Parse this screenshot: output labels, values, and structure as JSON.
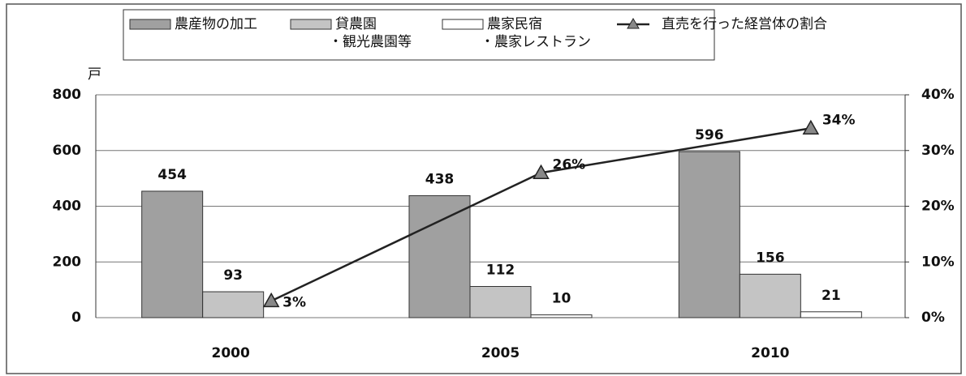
{
  "chart_data": {
    "type": "bar",
    "y_axis_label": "戸",
    "categories": [
      "2000",
      "2005",
      "2010"
    ],
    "series": [
      {
        "name": [
          "農産物の加工"
        ],
        "color": "#a0a0a0",
        "values": [
          454,
          438,
          596
        ]
      },
      {
        "name": [
          "貸農園",
          "・観光農園等"
        ],
        "color": "#c4c4c4",
        "values": [
          93,
          112,
          156
        ]
      },
      {
        "name": [
          "農家民宿",
          "・農家レストラン"
        ],
        "color": "#ffffff",
        "values": [
          null,
          10,
          21
        ]
      },
      {
        "name": [
          "直売を行った経営体の割合"
        ],
        "type": "line",
        "axis": "y2",
        "color": "#222222",
        "marker_color": "#888888",
        "values": [
          3,
          26,
          34
        ],
        "value_labels": [
          "3%",
          "26%",
          "34%"
        ]
      }
    ],
    "ylim": [
      0,
      800
    ],
    "yticks": [
      0,
      200,
      400,
      600,
      800
    ],
    "y2lim": [
      0,
      40
    ],
    "y2ticks": [
      {
        "value": 0,
        "label": "0%"
      },
      {
        "value": 10,
        "label": "10%"
      },
      {
        "value": 20,
        "label": "20%"
      },
      {
        "value": 30,
        "label": "30%"
      },
      {
        "value": 40,
        "label": "40%"
      }
    ],
    "grid": true
  }
}
